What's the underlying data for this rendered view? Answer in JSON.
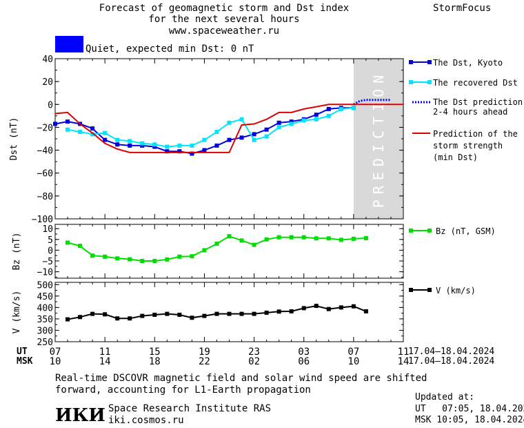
{
  "header": {
    "title_line1": "Forecast of geomagnetic storm and Dst index",
    "title_line2": "for the next several hours",
    "site": "www.spaceweather.ru",
    "brand": "StormFocus"
  },
  "status": {
    "label": "Quiet, expected min Dst: 0 nT",
    "color": "#0000ff"
  },
  "prediction_label": "PREDICTION",
  "legend": {
    "dst_kyoto": "The Dst, Kyoto",
    "dst_recovered": "The recovered Dst",
    "dst_prediction_1": "The Dst prediction",
    "dst_prediction_2": "2-4 hours ahead",
    "storm_1": "Prediction of the",
    "storm_2": "storm strength",
    "storm_3": "(min Dst)",
    "bz": "Bz (nT, GSM)",
    "v": "V (km/s)"
  },
  "axes": {
    "dst_label": "Dst (nT)",
    "bz_label": "Bz (nT)",
    "v_label": "V (km/s)",
    "ut_label": "UT",
    "msk_label": "MSK",
    "ut_ticks": [
      "07",
      "11",
      "15",
      "19",
      "23",
      "03",
      "07",
      "11"
    ],
    "msk_ticks": [
      "10",
      "14",
      "18",
      "22",
      "02",
      "06",
      "10",
      "14"
    ],
    "date_range_ut": "17.04–18.04.2024",
    "date_range_msk": "17.04–18.04.2024"
  },
  "footer": {
    "note_line1": "Real-time DSCOVR magnetic field and solar wind speed are shifted",
    "note_line2": "forward, accounting for L1-Earth propagation",
    "logo": "ИКИ",
    "institute": "Space Research Institute RAS",
    "institute_url": "iki.cosmos.ru",
    "updated_label": "Updated at:",
    "updated_ut": "UT   07:05, 18.04.2024",
    "updated_msk": "MSK 10:05, 18.04.2024"
  },
  "chart_data": {
    "type": "line",
    "x_unit": "UT hour (17.04 07:00 to 18.04 11:00)",
    "xlim": [
      7,
      35
    ],
    "prediction_window": [
      31,
      35
    ],
    "panels": [
      {
        "id": "dst",
        "ylabel": "Dst (nT)",
        "ylim": [
          -100,
          40
        ],
        "yticks": [
          40,
          20,
          0,
          -20,
          -40,
          -60,
          -80,
          -100
        ],
        "series": [
          {
            "name": "The Dst, Kyoto",
            "color": "#0000dd",
            "style": "line-square",
            "x": [
              7,
              8,
              9,
              10,
              11,
              12,
              13,
              14,
              15,
              16,
              17,
              18,
              19,
              20,
              21,
              22,
              23,
              24,
              25,
              26,
              27,
              28,
              29,
              30,
              31
            ],
            "y": [
              -17,
              -15,
              -17,
              -21,
              -31,
              -35,
              -36,
              -36,
              -37,
              -41,
              -41,
              -43,
              -40,
              -36,
              -31,
              -29,
              -26,
              -22,
              -16,
              -15,
              -13,
              -9,
              -4,
              -3,
              -3
            ]
          },
          {
            "name": "The recovered Dst",
            "color": "#00e5ff",
            "style": "line-square",
            "x": [
              8,
              9,
              10,
              11,
              12,
              13,
              14,
              15,
              16,
              17,
              18,
              19,
              20,
              21,
              22,
              23,
              24,
              25,
              26,
              27,
              28,
              29,
              30,
              31
            ],
            "y": [
              -22,
              -24,
              -26,
              -25,
              -31,
              -32,
              -34,
              -35,
              -37,
              -36,
              -36,
              -31,
              -24,
              -16,
              -13,
              -31,
              -28,
              -20,
              -17,
              -14,
              -13,
              -10,
              -4,
              -3
            ]
          },
          {
            "name": "The Dst prediction 2-4 hours ahead",
            "color": "#0000ff",
            "style": "dotted",
            "x": [
              31,
              31.5,
              32,
              33,
              34
            ],
            "y": [
              0,
              3,
              4,
              4,
              4
            ]
          },
          {
            "name": "Prediction of the storm strength (min Dst)",
            "color": "#dd0000",
            "style": "line",
            "x": [
              7,
              8,
              9,
              10,
              11,
              12,
              13,
              14,
              15,
              16,
              17,
              18,
              19,
              20,
              21,
              22,
              23,
              24,
              25,
              26,
              27,
              28,
              29,
              30,
              31,
              32,
              33,
              34,
              35
            ],
            "y": [
              -8,
              -7,
              -17,
              -25,
              -34,
              -39,
              -42,
              -42,
              -42,
              -42,
              -42,
              -42,
              -42,
              -42,
              -42,
              -18,
              -17,
              -13,
              -7,
              -7,
              -4,
              -2,
              0,
              0,
              0,
              0,
              0,
              0,
              0
            ]
          }
        ]
      },
      {
        "id": "bz",
        "ylabel": "Bz (nT)",
        "ylim": [
          -13,
          12
        ],
        "yticks": [
          10,
          5,
          0,
          -5,
          -10
        ],
        "series": [
          {
            "name": "Bz (nT, GSM)",
            "color": "#00dd00",
            "style": "line-square",
            "x": [
              8,
              9,
              10,
              11,
              12,
              13,
              14,
              15,
              16,
              17,
              18,
              19,
              20,
              21,
              22,
              23,
              24,
              25,
              26,
              27,
              28,
              29,
              30,
              31,
              32
            ],
            "y": [
              3.5,
              2,
              -2.5,
              -3,
              -3.8,
              -4.2,
              -5,
              -5,
              -4.3,
              -3,
              -2.8,
              0,
              3,
              6.5,
              4.5,
              2.5,
              5,
              6,
              6,
              6,
              5.5,
              5.5,
              4.8,
              5.3,
              5.6
            ]
          }
        ]
      },
      {
        "id": "v",
        "ylabel": "V (km/s)",
        "ylim": [
          250,
          510
        ],
        "yticks": [
          500,
          450,
          400,
          350,
          300,
          250
        ],
        "series": [
          {
            "name": "V (km/s)",
            "color": "#000000",
            "style": "line-square",
            "x": [
              8,
              9,
              10,
              11,
              12,
              13,
              14,
              15,
              16,
              17,
              18,
              19,
              20,
              21,
              22,
              23,
              24,
              25,
              26,
              27,
              28,
              29,
              30,
              31,
              32
            ],
            "y": [
              348,
              358,
              372,
              370,
              352,
              352,
              363,
              368,
              372,
              368,
              355,
              363,
              372,
              372,
              372,
              372,
              377,
              382,
              383,
              397,
              407,
              393,
              400,
              405,
              383
            ]
          }
        ]
      }
    ]
  }
}
